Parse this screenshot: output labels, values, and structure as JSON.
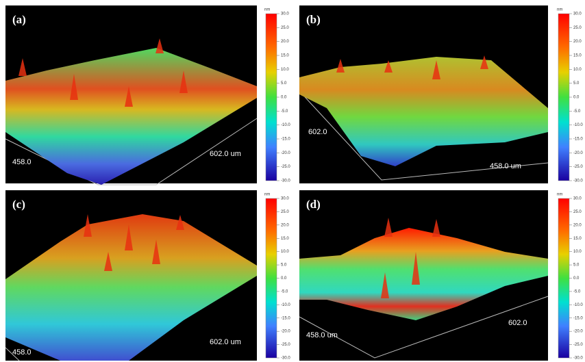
{
  "panels": [
    {
      "label": "(a)",
      "axis_labels": [
        "458.0",
        "602.0 um"
      ]
    },
    {
      "label": "(b)",
      "axis_labels": [
        "602.0",
        "458.0 um"
      ]
    },
    {
      "label": "(c)",
      "axis_labels": [
        "458.0",
        "602.0 um"
      ]
    },
    {
      "label": "(d)",
      "axis_labels": [
        "458.0 um",
        "602.0"
      ]
    }
  ],
  "colorbar": {
    "unit": "nm",
    "ticks": [
      "30.0",
      "25.0",
      "20.0",
      "15.0",
      "10.0",
      "5.0",
      "0.0",
      "-5.0",
      "-10.0",
      "-15.0",
      "-20.0",
      "-25.0",
      "-30.0"
    ]
  }
}
